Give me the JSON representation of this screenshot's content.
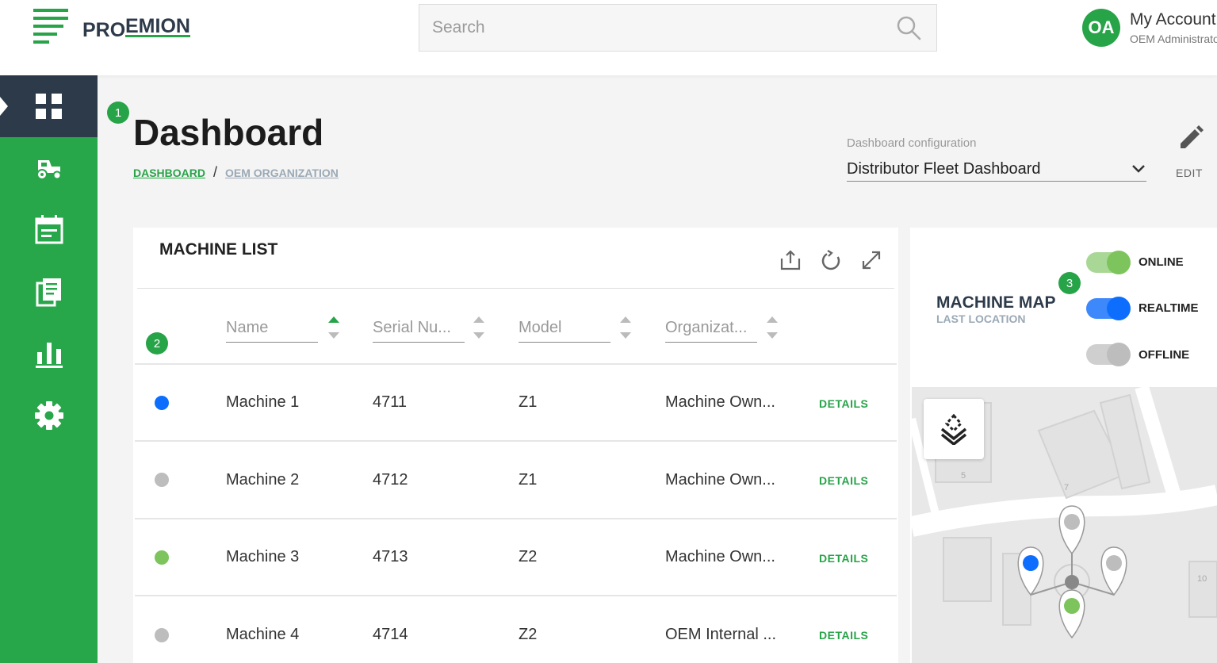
{
  "brand": {
    "name": "PROEMION",
    "logo_prefix": "PRO",
    "logo_suffix": "EMION"
  },
  "search": {
    "placeholder": "Search",
    "value": ""
  },
  "account": {
    "initials": "OA",
    "name": "My Account",
    "role": "OEM Administrator"
  },
  "sidebar": {
    "items": [
      {
        "icon": "dashboard-grid-icon",
        "active": true
      },
      {
        "icon": "tractor-icon",
        "active": false
      },
      {
        "icon": "calendar-icon",
        "active": false
      },
      {
        "icon": "documents-icon",
        "active": false
      },
      {
        "icon": "bar-chart-icon",
        "active": false
      },
      {
        "icon": "gear-icon",
        "active": false
      }
    ]
  },
  "badges": {
    "one": "1",
    "two": "2",
    "three": "3"
  },
  "page": {
    "title": "Dashboard",
    "breadcrumb": {
      "home": "DASHBOARD",
      "separator": "/",
      "current": "OEM ORGANIZATION"
    }
  },
  "config": {
    "label": "Dashboard configuration",
    "value": "Distributor Fleet Dashboard",
    "edit_label": "EDIT"
  },
  "machine_list": {
    "title": "MACHINE LIST",
    "columns": [
      "Name",
      "Serial Nu...",
      "Model",
      "Organizat..."
    ],
    "details_label": "DETAILS",
    "rows": [
      {
        "status": "realtime",
        "name": "Machine 1",
        "serial": "4711",
        "model": "Z1",
        "organization": "Machine Own..."
      },
      {
        "status": "offline",
        "name": "Machine 2",
        "serial": "4712",
        "model": "Z1",
        "organization": "Machine Own..."
      },
      {
        "status": "online",
        "name": "Machine 3",
        "serial": "4713",
        "model": "Z2",
        "organization": "Machine Own..."
      },
      {
        "status": "offline",
        "name": "Machine 4",
        "serial": "4714",
        "model": "Z2",
        "organization": "OEM Internal ..."
      }
    ]
  },
  "machine_map": {
    "title": "MACHINE MAP",
    "subtitle": "LAST LOCATION",
    "toggles": [
      {
        "label": "ONLINE",
        "on": true
      },
      {
        "label": "REALTIME",
        "on": true
      },
      {
        "label": "OFFLINE",
        "on": true
      }
    ],
    "house_numbers": [
      "5",
      "7",
      "10"
    ]
  },
  "colors": {
    "brand_green": "#27a348",
    "sidebar_active": "#2d3a4a",
    "status_realtime": "#0d6efd",
    "status_online": "#7cc45b",
    "status_offline": "#bdbdbd"
  }
}
